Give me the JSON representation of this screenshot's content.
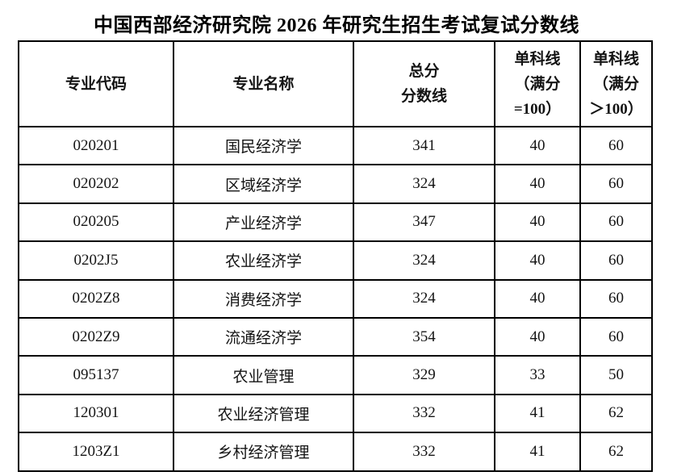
{
  "title": "中国西部经济研究院 2026 年研究生招生考试复试分数线",
  "table": {
    "headers": [
      {
        "lines": [
          "专业代码"
        ]
      },
      {
        "lines": [
          "专业名称"
        ]
      },
      {
        "lines": [
          "总分",
          "分数线"
        ]
      },
      {
        "lines": [
          "单科线",
          "（满分",
          "=100）"
        ]
      },
      {
        "lines": [
          "单科线",
          "（满分",
          "＞100）"
        ]
      }
    ],
    "rows": [
      [
        "020201",
        "国民经济学",
        "341",
        "40",
        "60"
      ],
      [
        "020202",
        "区域经济学",
        "324",
        "40",
        "60"
      ],
      [
        "020205",
        "产业经济学",
        "347",
        "40",
        "60"
      ],
      [
        "0202J5",
        "农业经济学",
        "324",
        "40",
        "60"
      ],
      [
        "0202Z8",
        "消费经济学",
        "324",
        "40",
        "60"
      ],
      [
        "0202Z9",
        "流通经济学",
        "354",
        "40",
        "60"
      ],
      [
        "095137",
        "农业管理",
        "329",
        "33",
        "50"
      ],
      [
        "120301",
        "农业经济管理",
        "332",
        "41",
        "62"
      ],
      [
        "1203Z1",
        "乡村经济管理",
        "332",
        "41",
        "62"
      ]
    ]
  },
  "colors": {
    "border": "#000000",
    "text": "#141414",
    "background": "#ffffff"
  }
}
